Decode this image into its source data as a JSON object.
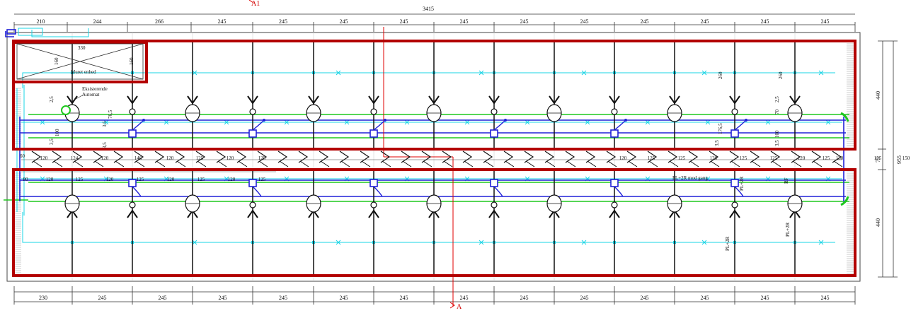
{
  "top_dims": {
    "total": "3415",
    "segments": [
      "210",
      "244",
      "266",
      "245",
      "245",
      "245",
      "245",
      "245",
      "245",
      "245",
      "245",
      "245",
      "245",
      "245"
    ]
  },
  "bottom_dims": {
    "segments": [
      "230",
      "245",
      "245",
      "245",
      "245",
      "245",
      "245",
      "245",
      "245",
      "245",
      "245",
      "245",
      "245",
      "245"
    ]
  },
  "right_dims": {
    "upper": "440",
    "middle": "75",
    "lower": "440",
    "total": "955"
  },
  "room_box": {
    "label": "Muret enhed",
    "width": "330",
    "height": "160"
  },
  "automat_label": {
    "line1": "Eksisterende",
    "line2": "Automat"
  },
  "upper_aisle_dims": [
    "120",
    "124",
    "120",
    "146",
    "120",
    "125",
    "120",
    "125",
    "120",
    "125",
    "125",
    "120",
    "125",
    "125",
    "120",
    "125",
    "130",
    "155",
    "150"
  ],
  "lower_aisle_dims": [
    "80",
    "120",
    "125",
    "120",
    "125",
    "120",
    "125",
    "120",
    "125"
  ],
  "left_small_dims": [
    "60",
    "3,5",
    "2,5",
    "100",
    "3,5"
  ],
  "mid_small_dims": [
    "76,5",
    "3,5"
  ],
  "right_small_dims": [
    "260",
    "260",
    "2,5",
    "176,5",
    "3,5",
    "3,5",
    "70",
    "100"
  ],
  "annotations": {
    "gang_label": "PL+2R mod gang",
    "pl2r_a": "PL+2R",
    "pl2r_b": "PL+2R",
    "pl2r_c": "PL+2R",
    "rf": "RF"
  },
  "section_marker": {
    "letter": "A",
    "top_label": "A1",
    "bottom_label": "A"
  },
  "colors": {
    "outline": "#b30000",
    "section_line": "#e00000",
    "cyan": "#19d4e6",
    "blue": "#2020d8",
    "green": "#1ec81e",
    "black": "#111111"
  }
}
